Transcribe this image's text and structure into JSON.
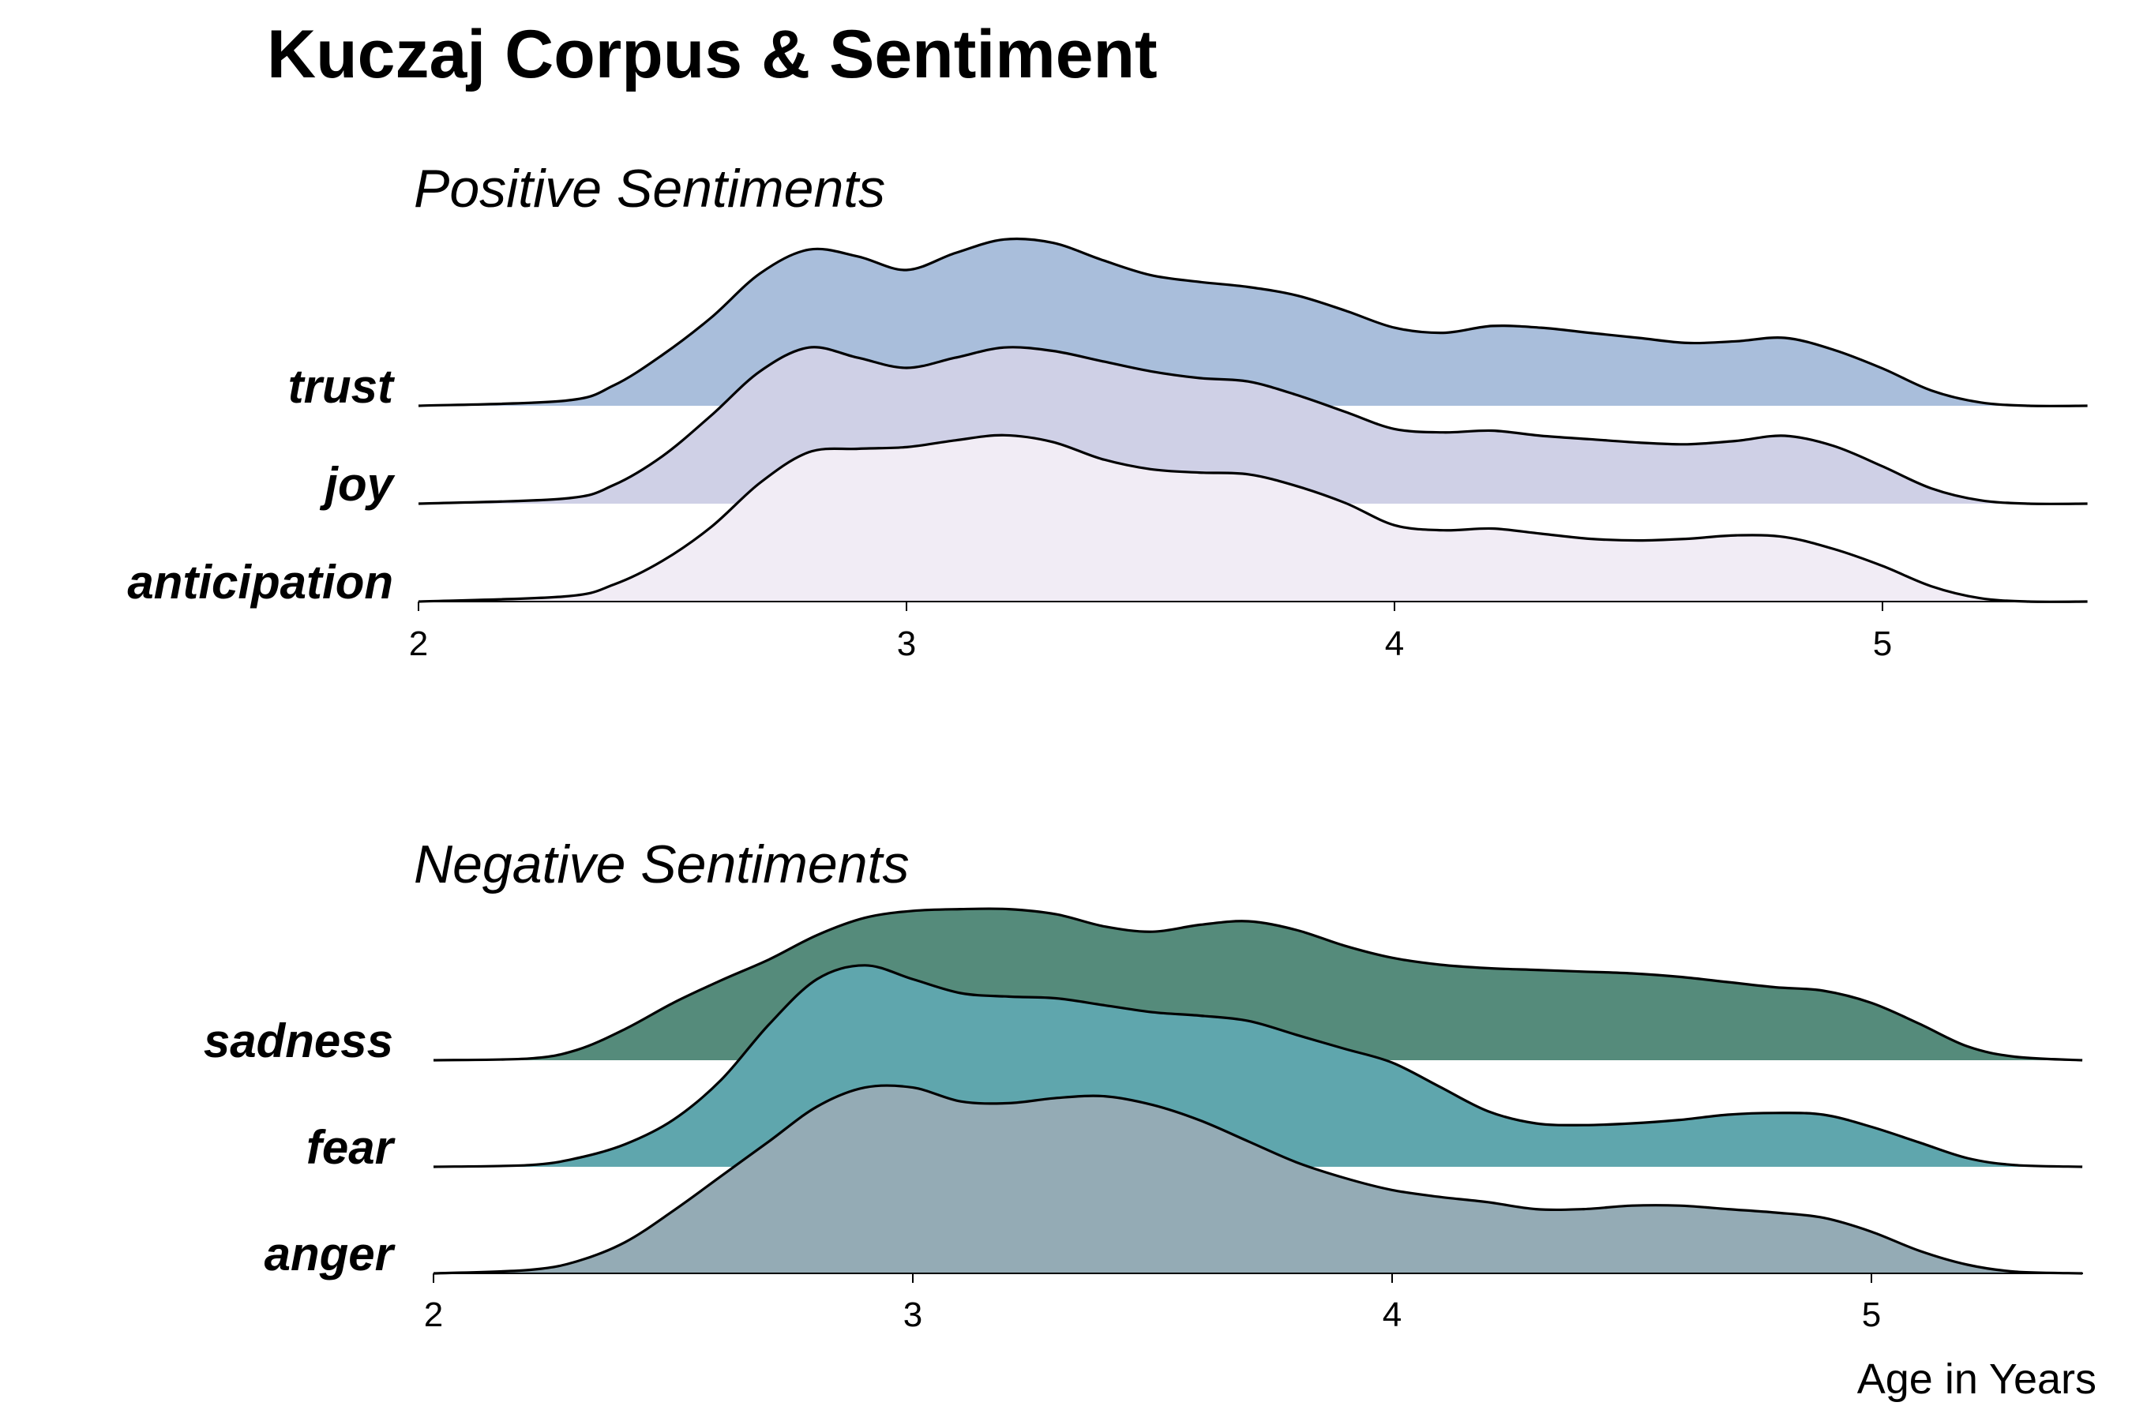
{
  "title": "Kuczaj Corpus & Sentiment",
  "chart_data": [
    {
      "type": "area",
      "subtitle": "Positive Sentiments",
      "xlabel": "",
      "ylabel": "",
      "xlim": [
        2,
        5.42
      ],
      "xticks": [
        "2",
        "3",
        "4",
        "5"
      ],
      "grid": false,
      "legend": "none",
      "x": [
        2.0,
        2.3,
        2.4,
        2.5,
        2.6,
        2.7,
        2.8,
        2.9,
        3.0,
        3.1,
        3.2,
        3.3,
        3.4,
        3.5,
        3.6,
        3.7,
        3.8,
        3.9,
        4.0,
        4.1,
        4.2,
        4.3,
        4.4,
        4.5,
        4.6,
        4.7,
        4.8,
        4.9,
        5.0,
        5.1,
        5.2,
        5.3,
        5.42
      ],
      "series": [
        {
          "name": "trust",
          "color": "#a9bedb",
          "values": [
            0.0,
            0.03,
            0.12,
            0.3,
            0.52,
            0.78,
            0.92,
            0.88,
            0.8,
            0.9,
            0.98,
            0.96,
            0.86,
            0.77,
            0.73,
            0.7,
            0.65,
            0.56,
            0.46,
            0.43,
            0.47,
            0.46,
            0.43,
            0.4,
            0.37,
            0.38,
            0.4,
            0.33,
            0.22,
            0.09,
            0.02,
            0.0,
            0.0
          ]
        },
        {
          "name": "joy",
          "color": "#cfd0e6",
          "values": [
            0.0,
            0.03,
            0.11,
            0.28,
            0.52,
            0.78,
            0.92,
            0.86,
            0.8,
            0.86,
            0.92,
            0.9,
            0.84,
            0.78,
            0.74,
            0.72,
            0.64,
            0.54,
            0.44,
            0.42,
            0.43,
            0.4,
            0.38,
            0.36,
            0.35,
            0.37,
            0.4,
            0.34,
            0.22,
            0.09,
            0.02,
            0.0,
            0.0
          ]
        },
        {
          "name": "anticipation",
          "color": "#f1ecf5",
          "values": [
            0.0,
            0.03,
            0.1,
            0.24,
            0.44,
            0.7,
            0.88,
            0.9,
            0.91,
            0.95,
            0.98,
            0.94,
            0.84,
            0.78,
            0.76,
            0.75,
            0.68,
            0.58,
            0.45,
            0.42,
            0.43,
            0.4,
            0.37,
            0.36,
            0.37,
            0.39,
            0.38,
            0.31,
            0.21,
            0.09,
            0.02,
            0.0,
            0.0
          ]
        }
      ]
    },
    {
      "type": "area",
      "subtitle": "Negative Sentiments",
      "xlabel": "Age in Years",
      "ylabel": "",
      "xlim": [
        2,
        5.44
      ],
      "xticks": [
        "2",
        "3",
        "4",
        "5"
      ],
      "grid": false,
      "legend": "none",
      "x": [
        2.0,
        2.2,
        2.3,
        2.4,
        2.5,
        2.6,
        2.7,
        2.8,
        2.9,
        3.0,
        3.1,
        3.2,
        3.3,
        3.4,
        3.5,
        3.6,
        3.7,
        3.8,
        3.9,
        4.0,
        4.1,
        4.2,
        4.3,
        4.4,
        4.5,
        4.6,
        4.7,
        4.8,
        4.9,
        5.0,
        5.1,
        5.2,
        5.3,
        5.44
      ],
      "series": [
        {
          "name": "sadness",
          "color": "#558b7b",
          "values": [
            0.0,
            0.01,
            0.06,
            0.18,
            0.33,
            0.46,
            0.58,
            0.72,
            0.82,
            0.86,
            0.87,
            0.87,
            0.84,
            0.77,
            0.74,
            0.78,
            0.8,
            0.75,
            0.66,
            0.59,
            0.55,
            0.53,
            0.52,
            0.51,
            0.5,
            0.48,
            0.45,
            0.42,
            0.4,
            0.33,
            0.21,
            0.08,
            0.02,
            0.0
          ]
        },
        {
          "name": "fear",
          "color": "#5fa6ad",
          "values": [
            0.0,
            0.01,
            0.05,
            0.13,
            0.27,
            0.5,
            0.82,
            1.08,
            1.16,
            1.08,
            1.0,
            0.98,
            0.97,
            0.93,
            0.89,
            0.87,
            0.84,
            0.76,
            0.68,
            0.6,
            0.46,
            0.32,
            0.25,
            0.24,
            0.25,
            0.27,
            0.3,
            0.31,
            0.3,
            0.23,
            0.14,
            0.05,
            0.01,
            0.0
          ]
        },
        {
          "name": "anger",
          "color": "#94abb5",
          "values": [
            0.0,
            0.02,
            0.07,
            0.18,
            0.36,
            0.56,
            0.76,
            0.96,
            1.07,
            1.07,
            0.99,
            0.98,
            1.01,
            1.02,
            0.97,
            0.88,
            0.76,
            0.64,
            0.55,
            0.48,
            0.44,
            0.41,
            0.37,
            0.37,
            0.39,
            0.39,
            0.37,
            0.35,
            0.32,
            0.24,
            0.13,
            0.05,
            0.01,
            0.0
          ]
        }
      ]
    }
  ]
}
